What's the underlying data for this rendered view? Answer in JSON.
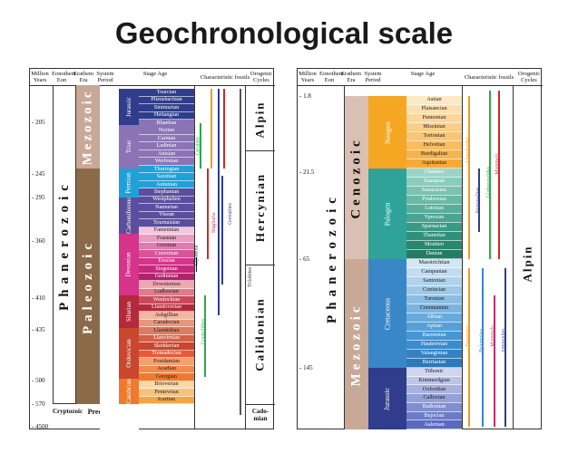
{
  "title": "Geochronological scale",
  "headers": {
    "years": "Million Years",
    "eon": "Eonothem Eon",
    "era": "Erathem Era",
    "period": "System Period",
    "stage": "Stage Age",
    "fossils": "Characteristic fossils",
    "orogenic": "Orogenic Cycles"
  },
  "left": {
    "ticks": [
      "205",
      "245",
      "295",
      "360",
      "410",
      "435",
      "500",
      "570",
      "4500"
    ],
    "eon": "Phanerozoic",
    "eon2": "Cryptozoic",
    "precambrian": "Precambrian",
    "eras": [
      "Mezozoic",
      "Paleozoic"
    ],
    "periods": [
      "Jurassic",
      "Trias",
      "Permian",
      "Carboniferous",
      "Devonian",
      "Silurian",
      "Ordovician",
      "Cambrian"
    ],
    "stages": [
      "Toarcian",
      "Pliensbachian",
      "Sinimurian",
      "Hettangian",
      "Rhaetian",
      "Norian",
      "Carnian",
      "Ladinian",
      "Anisian",
      "Werfenian",
      "Thuringian",
      "Saxinian",
      "Autunian",
      "Stephanian",
      "Westphalien",
      "Namurian",
      "Visean",
      "Tournaisian",
      "Famennian",
      "Frasnian",
      "Givetian",
      "Couvinian",
      "Emsian",
      "Siegenian",
      "Gedinnian",
      "Downtonian",
      "Ludlowian",
      "Wenlockian",
      "Llandoverian",
      "Ashgillian",
      "Caradocian",
      "Llandeilian",
      "Llanvirnian",
      "Skiddavian",
      "Tremadocian",
      "Postdamian",
      "Acadian",
      "Georgian",
      "Brioverian",
      "Pentevrian",
      "Icartian"
    ],
    "fossils": [
      "Ceratites",
      "Goniatites",
      "Stagliaria",
      "Clymenia",
      "Graptolithes",
      "Trilobites"
    ],
    "orogenic": [
      "Alpin",
      "Hercynian",
      "Calidonian",
      "Cado-mian"
    ]
  },
  "right": {
    "ticks": [
      "1.8",
      "21.5",
      "65",
      "145"
    ],
    "eon": "Phanerozoic",
    "eras": [
      "Cenozoic",
      "Mezozoic"
    ],
    "periods": [
      "Neogen",
      "Palogen",
      "Cretaceous",
      "Jurassic"
    ],
    "stages": [
      "Astian",
      "Plaisancian",
      "Pannonian",
      "Missinian",
      "Tortonian",
      "Helvetian",
      "Burdigalian",
      "Aquitanian",
      "Chattien",
      "Stampian",
      "Sannoisian",
      "Priabonian",
      "Lutetian",
      "Ypresian",
      "Sparnacian",
      "Thanetian",
      "Montien",
      "Danian",
      "Maestrichtian",
      "Campanian",
      "Santonian",
      "Coniacian",
      "Turonian",
      "Cenomanian",
      "Albian",
      "Aptian",
      "Barremian",
      "Hauterivian",
      "Valanginian",
      "Berriasian",
      "Tithonic",
      "Kimmerdgian",
      "Oxfordian",
      "Callovian",
      "Bathonian",
      "Bajocian",
      "Aalenian"
    ],
    "fossils": [
      "Alveolinides",
      "Nummulites",
      "Globorotalides",
      "Mammals",
      "Dinosaurs",
      "Belemnites",
      "Mammals",
      "Ammonites"
    ],
    "orogenic": [
      "Alpin"
    ]
  },
  "colors": {
    "jurassic": "#2f3d8c",
    "trias": "#8a74b5",
    "permian": "#20a0d8",
    "carboniferous": "#5b4e9e",
    "devonian": "#d6338a",
    "silurian": "#b52a3a",
    "ordovician": "#c9462f",
    "cambrian": "#f07a2c",
    "precambrian": "#f4a640",
    "neogen": "#f5a623",
    "palogen": "#2fa39a",
    "cretaceous": "#3a87c8",
    "mezo_era": "#c8a896",
    "paleo_era": "#8b6a4a",
    "ceno_era": "#d9c0b2"
  }
}
